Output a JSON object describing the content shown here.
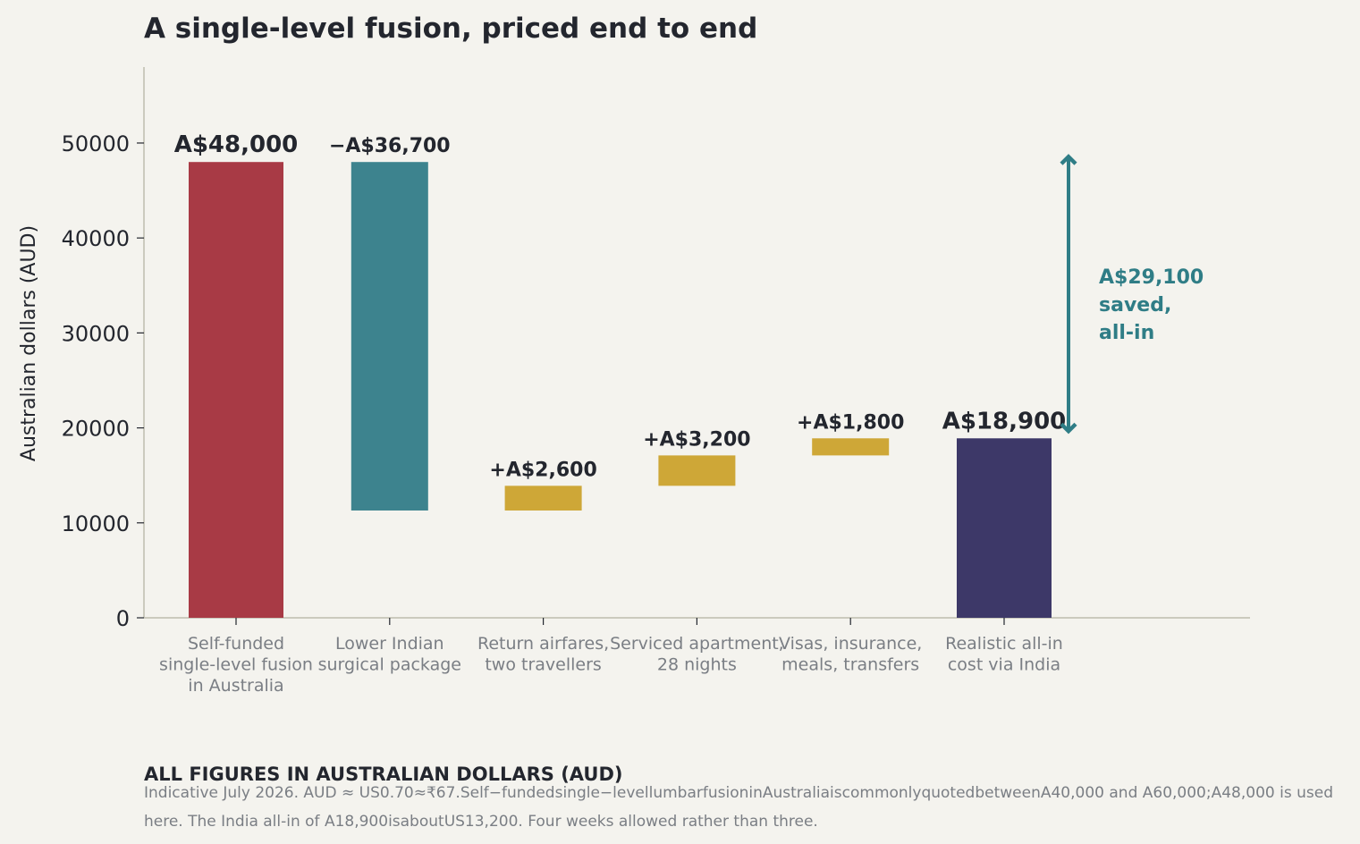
{
  "chart_data": {
    "type": "waterfall",
    "title": "A single-level fusion, priced end to end",
    "ylabel": "Australian dollars (AUD)",
    "ylim": [
      0,
      58000
    ],
    "yticks": [
      0,
      10000,
      20000,
      30000,
      40000,
      50000
    ],
    "grid": false,
    "bars": [
      {
        "category": [
          "Self-funded",
          "single-level fusion",
          "in Australia"
        ],
        "kind": "total",
        "start": 0,
        "end": 48000,
        "label": "A$48,000",
        "color": "#a83a45"
      },
      {
        "category": [
          "Lower Indian",
          "surgical package"
        ],
        "kind": "decrease",
        "start": 48000,
        "end": 11300,
        "label": "−A$36,700",
        "color": "#3d838e"
      },
      {
        "category": [
          "Return airfares,",
          "two travellers"
        ],
        "kind": "increase",
        "start": 11300,
        "end": 13900,
        "label": "+A$2,600",
        "color": "#cea737"
      },
      {
        "category": [
          "Serviced apartment,",
          "28 nights"
        ],
        "kind": "increase",
        "start": 13900,
        "end": 17100,
        "label": "+A$3,200",
        "color": "#cea737"
      },
      {
        "category": [
          "Visas, insurance,",
          "meals, transfers"
        ],
        "kind": "increase",
        "start": 17100,
        "end": 18900,
        "label": "+A$1,800",
        "color": "#cea737"
      },
      {
        "category": [
          "Realistic all-in",
          "cost via India"
        ],
        "kind": "total",
        "start": 0,
        "end": 18900,
        "label": "A$18,900",
        "color": "#3d3868"
      }
    ],
    "annotation": {
      "text": [
        "A$29,100",
        "saved,",
        "all-in"
      ],
      "from": 18900,
      "to": 48000,
      "color": "#2f7d86"
    }
  },
  "footer": {
    "heading": "ALL FIGURES IN AUSTRALIAN DOLLARS (AUD)",
    "note": "Indicative July 2026. AUD ≈ US0.70≈₹67.Self−fundedsingle−levellumbarfusioninAustraliaiscommonlyquotedbetweenA40,000 and A60,000;A48,000 is used here. The India all-in of A18,900isaboutUS13,200. Four weeks allowed rather than three."
  }
}
